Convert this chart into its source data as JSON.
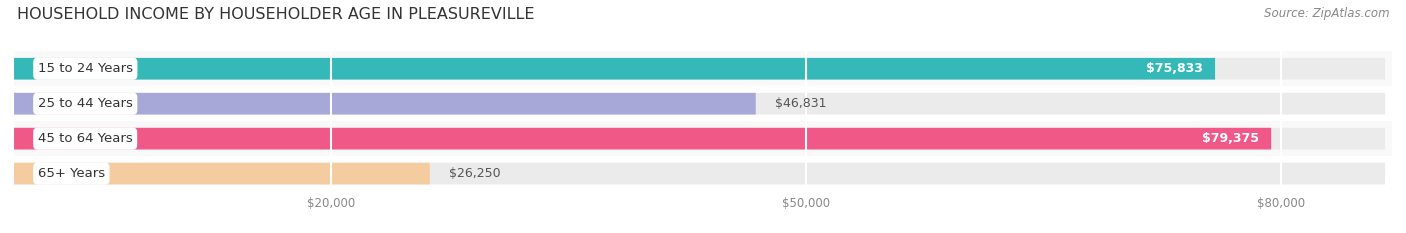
{
  "title": "HOUSEHOLD INCOME BY HOUSEHOLDER AGE IN PLEASUREVILLE",
  "source": "Source: ZipAtlas.com",
  "categories": [
    "15 to 24 Years",
    "25 to 44 Years",
    "45 to 64 Years",
    "65+ Years"
  ],
  "values": [
    75833,
    46831,
    79375,
    26250
  ],
  "bar_colors": [
    "#35b8b8",
    "#a8a8d8",
    "#f05888",
    "#f5cca0"
  ],
  "bar_label_colors": [
    "#ffffff",
    "#666666",
    "#ffffff",
    "#666666"
  ],
  "label_inside": [
    true,
    false,
    true,
    false
  ],
  "x_ticks": [
    20000,
    50000,
    80000
  ],
  "x_tick_labels": [
    "$20,000",
    "$50,000",
    "$80,000"
  ],
  "xlim_max": 87000,
  "bar_height": 0.62,
  "background_color": "#ffffff",
  "bar_bg_color": "#ebebeb",
  "title_fontsize": 11.5,
  "source_fontsize": 8.5,
  "label_fontsize": 9,
  "category_fontsize": 9.5,
  "row_bg_colors": [
    "#f9f9f9",
    "#ffffff",
    "#f9f9f9",
    "#ffffff"
  ]
}
